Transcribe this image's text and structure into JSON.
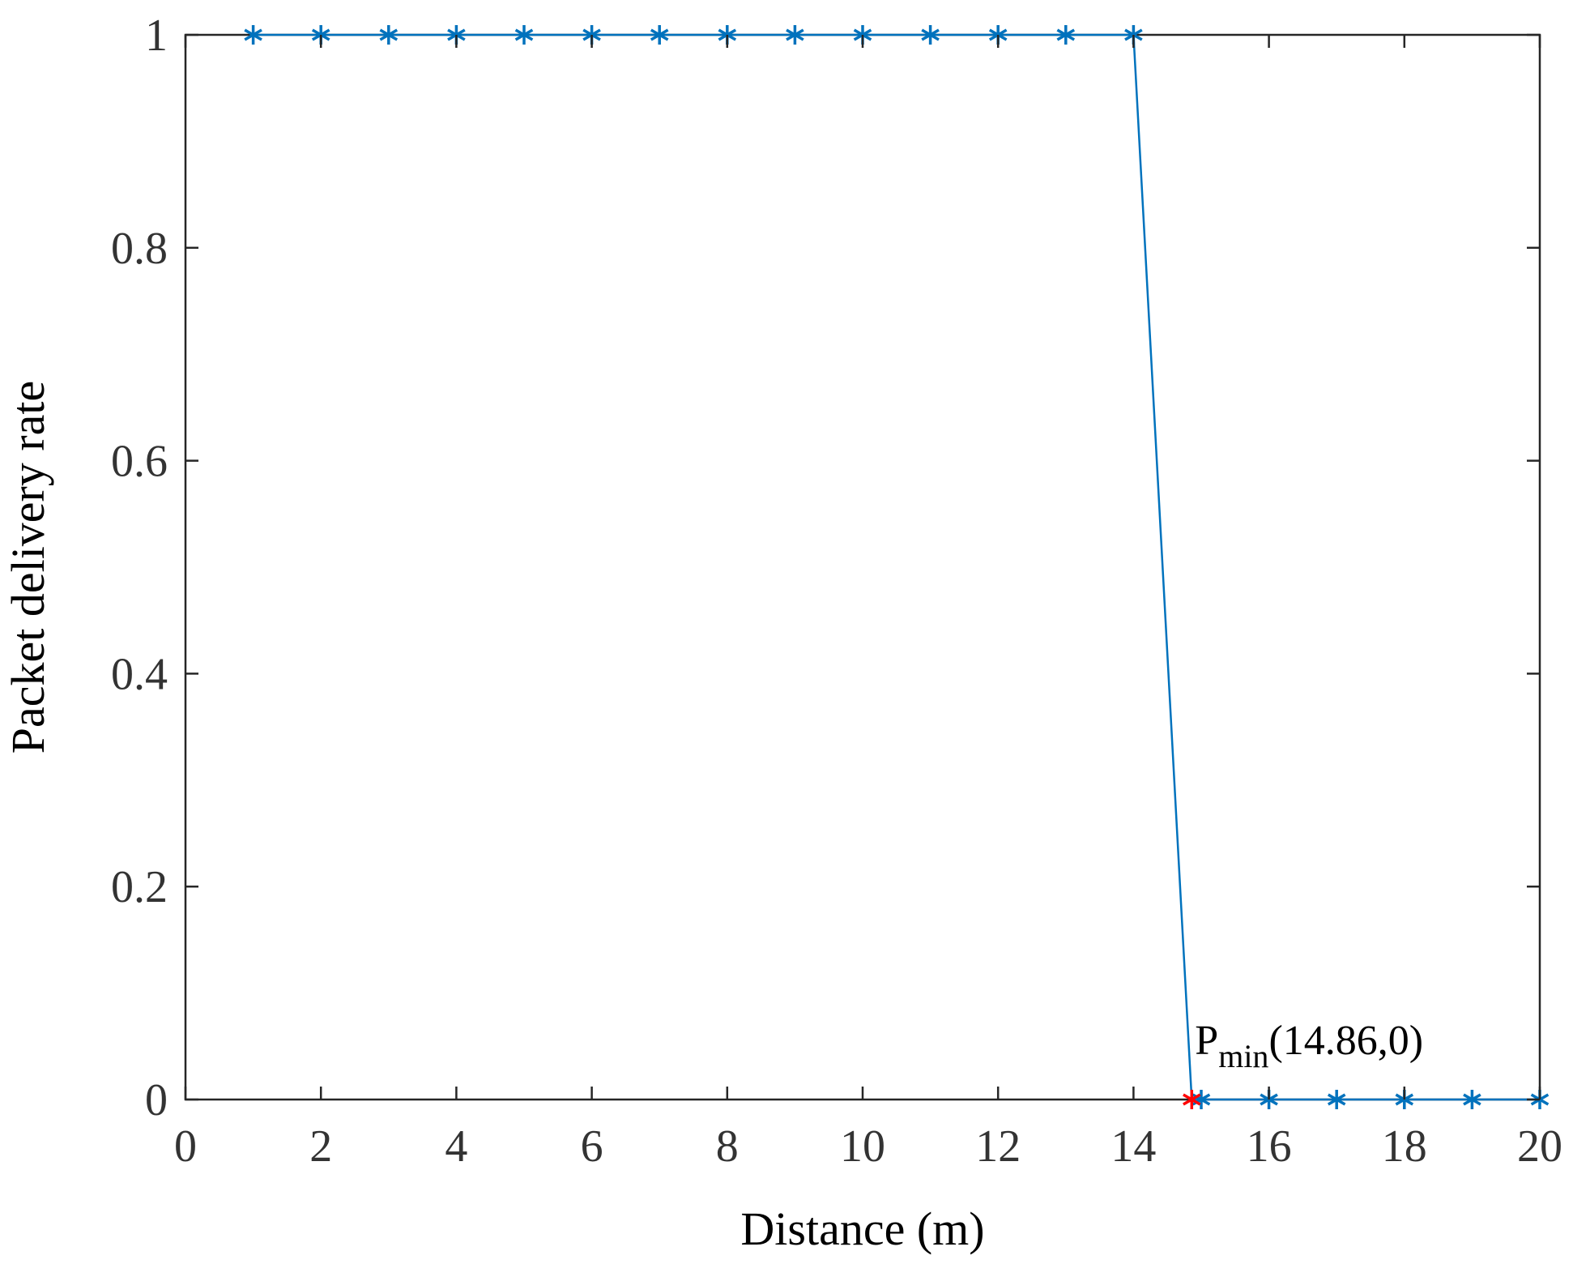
{
  "chart_data": {
    "type": "line",
    "xlabel": "Distance (m)",
    "ylabel": "Packet delivery rate",
    "xlim": [
      0,
      20
    ],
    "ylim": [
      0,
      1
    ],
    "xticks": [
      0,
      2,
      4,
      6,
      8,
      10,
      12,
      14,
      16,
      18,
      20
    ],
    "yticks": [
      0,
      0.2,
      0.4,
      0.6,
      0.8,
      1
    ],
    "xtick_labels": [
      "0",
      "2",
      "4",
      "6",
      "8",
      "10",
      "12",
      "14",
      "16",
      "18",
      "20"
    ],
    "ytick_labels": [
      "0",
      "0.2",
      "0.4",
      "0.6",
      "0.8",
      "1"
    ],
    "grid": false,
    "box": true,
    "series": [
      {
        "color": "#0072BD",
        "marker": "asterisk",
        "x": [
          1,
          2,
          3,
          4,
          5,
          6,
          7,
          8,
          9,
          10,
          11,
          12,
          13,
          14,
          14.86,
          15,
          16,
          17,
          18,
          19,
          20
        ],
        "y": [
          1,
          1,
          1,
          1,
          1,
          1,
          1,
          1,
          1,
          1,
          1,
          1,
          1,
          1,
          0,
          0,
          0,
          0,
          0,
          0,
          0
        ]
      }
    ],
    "highlight_point": {
      "x": 14.86,
      "y": 0,
      "color": "#FF0000",
      "marker": "asterisk",
      "label_main": "P",
      "label_sub": "min",
      "label_coords": "(14.86,0)"
    }
  }
}
